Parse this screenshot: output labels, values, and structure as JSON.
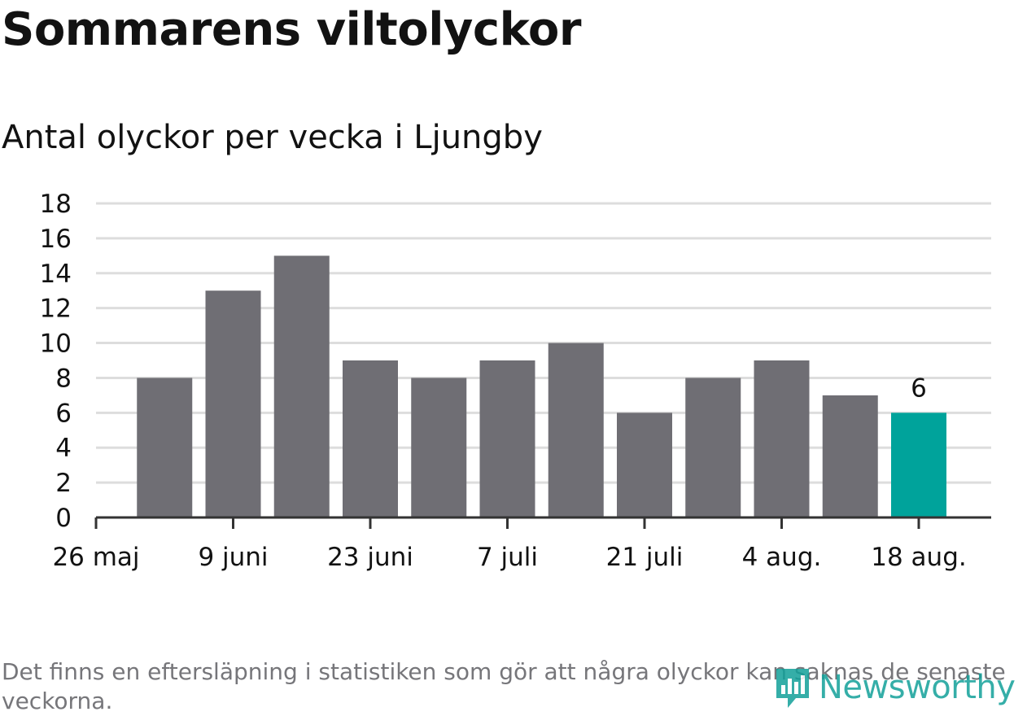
{
  "title": "Sommarens viltolyckor",
  "subtitle": "Antal olyckor per vecka i Ljungby",
  "note": "Det finns en eftersläpning i statistiken som gör att några olyckor kan saknas de senaste veckorna.",
  "logo": {
    "text": "Newsworthy",
    "icon": "newsworthy-logo-icon"
  },
  "colors": {
    "bar": "#6f6e74",
    "highlight": "#00a39b",
    "grid": "#dddddd",
    "axis": "#333333",
    "text": "#121212"
  },
  "chart_data": {
    "type": "bar",
    "x": [
      "2019-06-02",
      "2019-06-09",
      "2019-06-16",
      "2019-06-23",
      "2019-06-30",
      "2019-07-07",
      "2019-07-14",
      "2019-07-21",
      "2019-07-28",
      "2019-08-04",
      "2019-08-11",
      "2019-08-18"
    ],
    "values": [
      8,
      13,
      15,
      9,
      8,
      9,
      10,
      6,
      8,
      9,
      7,
      6
    ],
    "highlight_index": 11,
    "data_labels": [
      {
        "index": 11,
        "text": "6"
      }
    ],
    "ylim": [
      0,
      18
    ],
    "yticks": [
      "0",
      "2",
      "4",
      "6",
      "8",
      "10",
      "12",
      "14",
      "16",
      "18"
    ],
    "xticks": [
      {
        "date": "2019-05-26",
        "label": "26 maj"
      },
      {
        "date": "2019-06-09",
        "label": "9 juni"
      },
      {
        "date": "2019-06-23",
        "label": "23 juni"
      },
      {
        "date": "2019-07-07",
        "label": "7 juli"
      },
      {
        "date": "2019-07-21",
        "label": "21 juli"
      },
      {
        "date": "2019-08-04",
        "label": "4 aug."
      },
      {
        "date": "2019-08-18",
        "label": "18 aug."
      }
    ],
    "grid": true,
    "xlabel": "",
    "ylabel": ""
  }
}
